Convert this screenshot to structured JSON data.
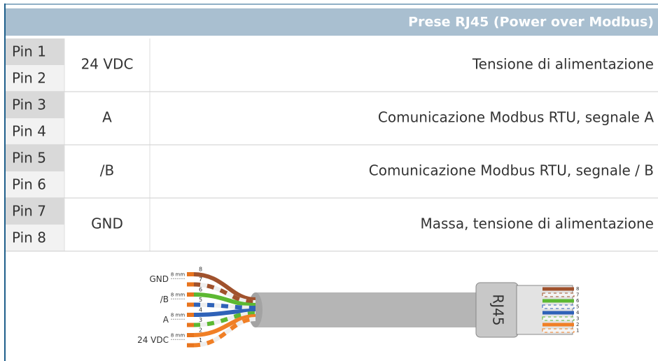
{
  "header": {
    "title": "Prese RJ45 (Power over Modbus)"
  },
  "table": {
    "rows": [
      {
        "pins": [
          "Pin 1",
          "Pin 2"
        ],
        "signal": "24 VDC",
        "description": "Tensione di alimentazione"
      },
      {
        "pins": [
          "Pin 3",
          "Pin 4"
        ],
        "signal": "A",
        "description": "Comunicazione Modbus RTU, segnale A"
      },
      {
        "pins": [
          "Pin 5",
          "Pin 6"
        ],
        "signal": "/B",
        "description": "Comunicazione Modbus RTU, segnale / B"
      },
      {
        "pins": [
          "Pin 7",
          "Pin 8"
        ],
        "signal": "GND",
        "description": "Massa, tensione di alimentazione"
      }
    ]
  },
  "diagram": {
    "pair_labels": [
      "GND",
      "/B",
      "A",
      "24 VDC"
    ],
    "strip_labels": [
      "8 mm",
      "8 mm",
      "8 mm",
      "8 mm"
    ],
    "wire_numbers": [
      "8",
      "7",
      "6",
      "5",
      "4",
      "3",
      "2",
      "1"
    ],
    "connector_label": "RJ45",
    "connector_pins": [
      "8",
      "7",
      "6",
      "5",
      "4",
      "3",
      "2",
      "1"
    ]
  }
}
